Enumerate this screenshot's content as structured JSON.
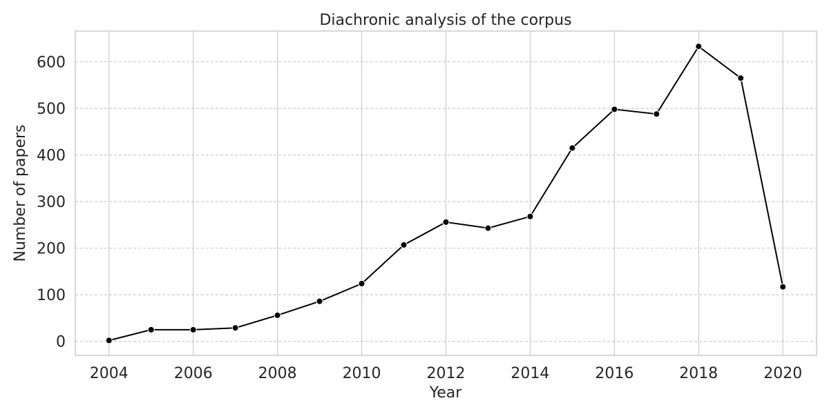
{
  "chart_data": {
    "type": "line",
    "title": "Diachronic analysis of the corpus",
    "xlabel": "Year",
    "ylabel": "Number of papers",
    "x": [
      2004,
      2005,
      2006,
      2007,
      2008,
      2009,
      2010,
      2011,
      2012,
      2013,
      2014,
      2015,
      2016,
      2017,
      2018,
      2019,
      2020
    ],
    "series": [
      {
        "values": [
          2,
          25,
          25,
          29,
          56,
          86,
          124,
          207,
          256,
          243,
          268,
          415,
          498,
          488,
          633,
          565,
          117
        ],
        "color": "#000000"
      }
    ],
    "xlim": [
      2003.2,
      2020.8
    ],
    "ylim": [
      -30,
      666
    ],
    "xticks": [
      "2004",
      "2006",
      "2008",
      "2010",
      "2012",
      "2014",
      "2016",
      "2018",
      "2020"
    ],
    "yticks": [
      "0",
      "100",
      "200",
      "300",
      "400",
      "500",
      "600"
    ],
    "grid": true,
    "legend": "none"
  }
}
